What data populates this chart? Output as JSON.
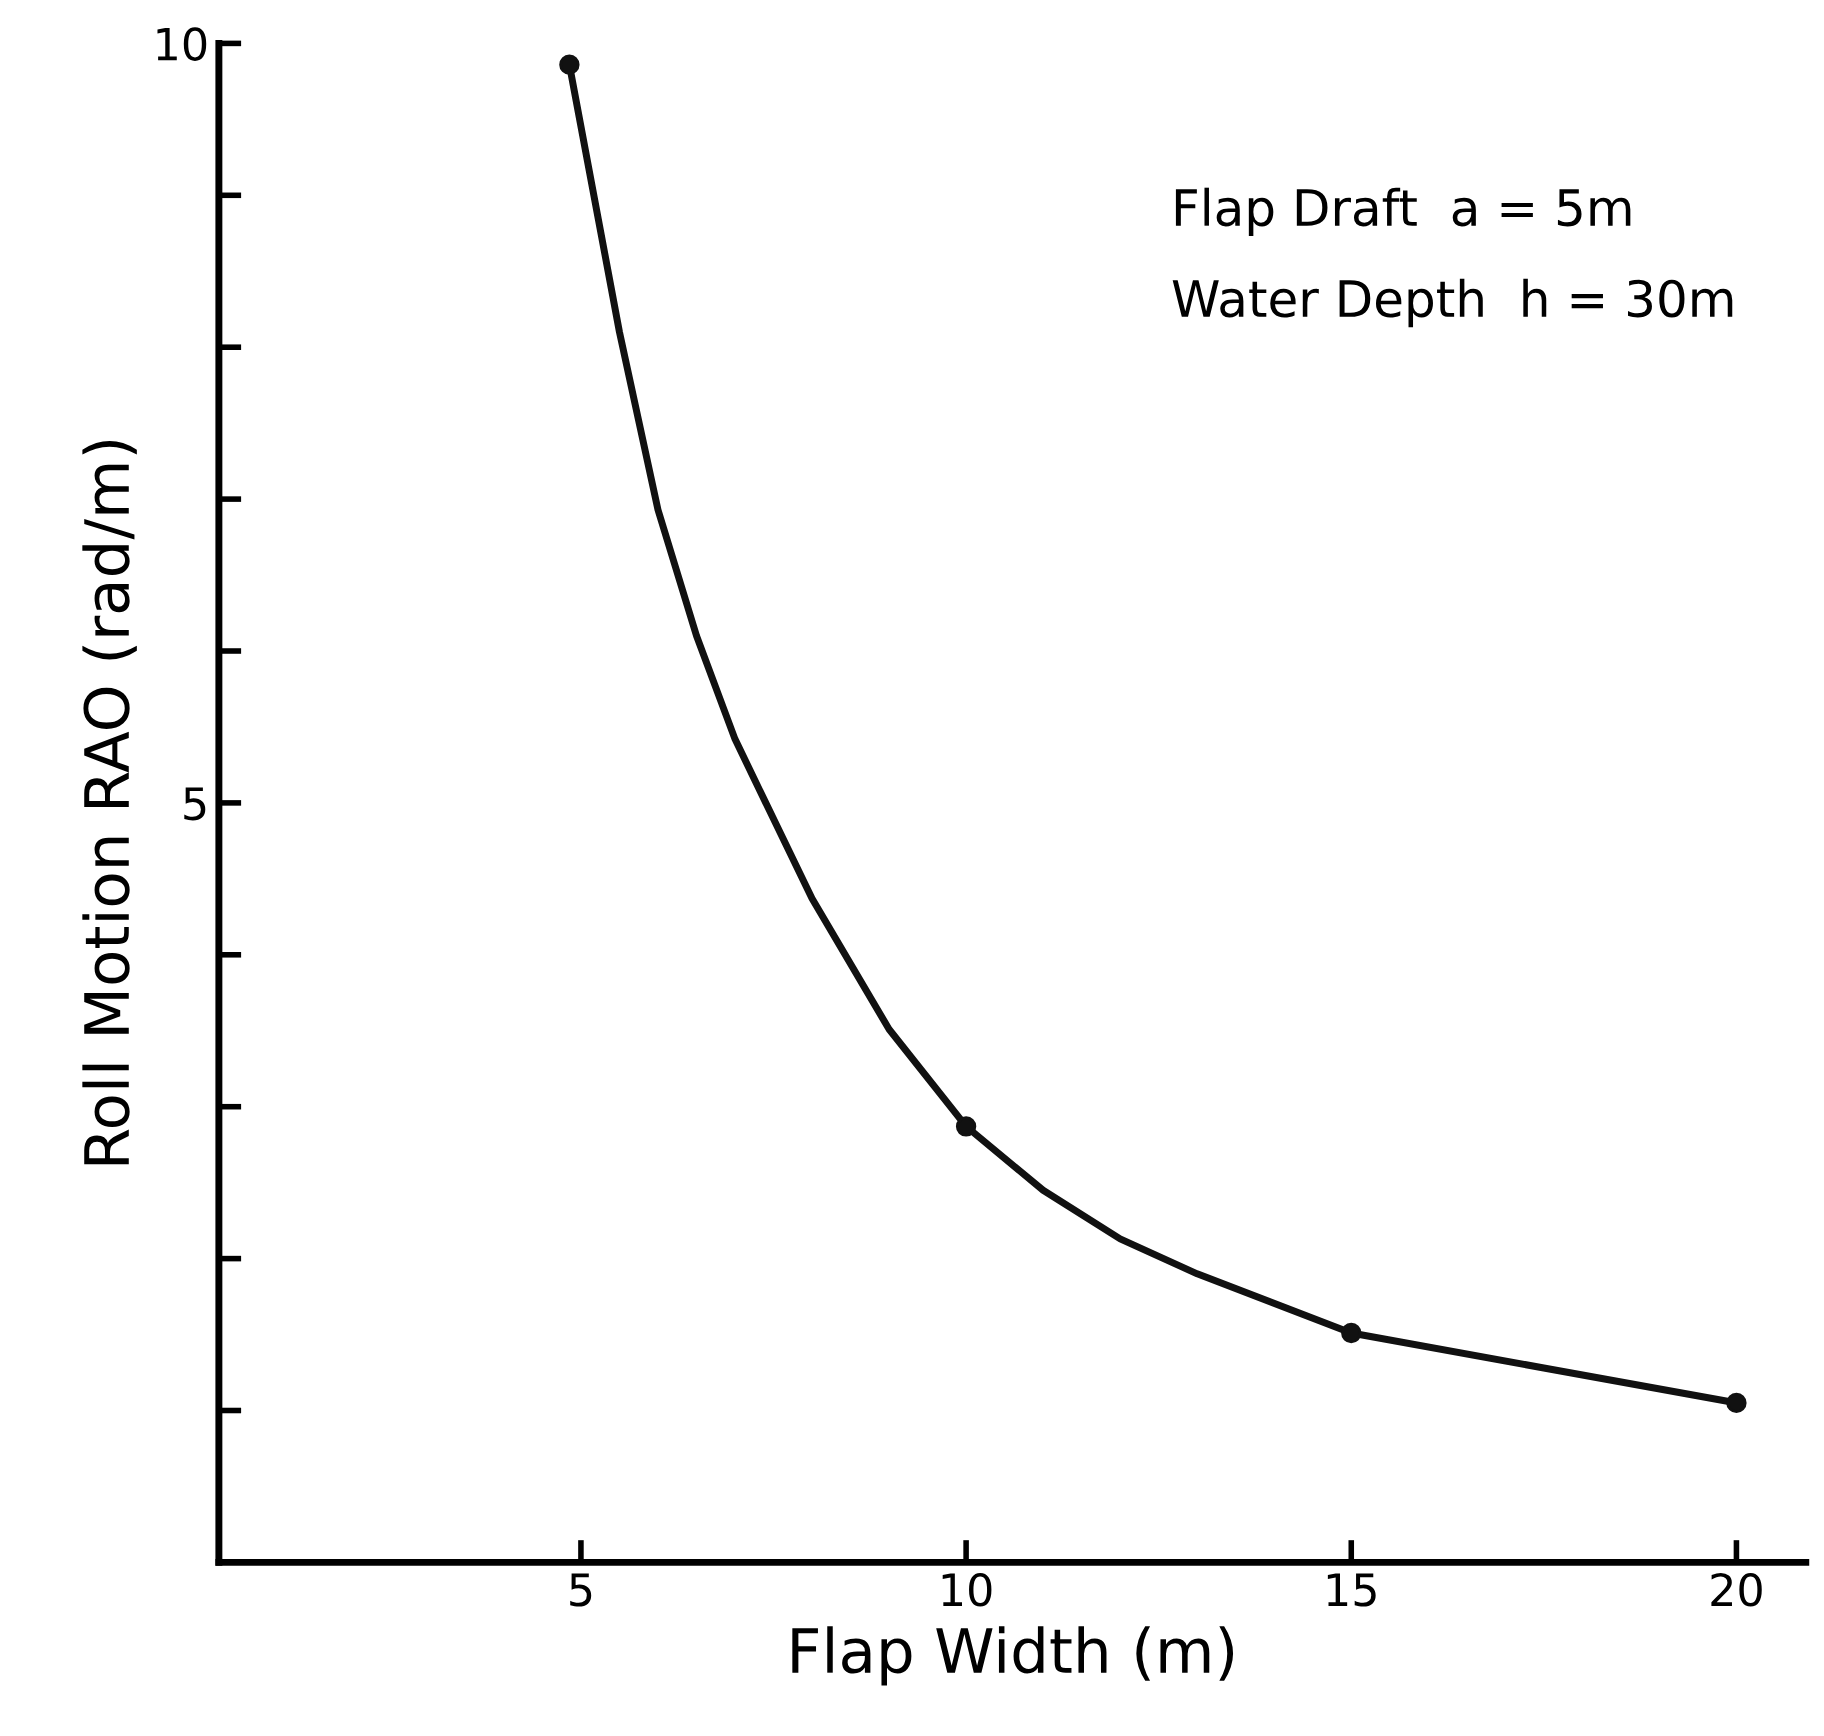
{
  "chart_data": {
    "type": "line",
    "xlabel": "Flap Width (m)",
    "ylabel": "Roll Motion RAO (rad/m)",
    "xlim": [
      0.3,
      20.9
    ],
    "ylim": [
      0,
      10
    ],
    "xticks": [
      5,
      10,
      15,
      20
    ],
    "yticks": [
      {
        "value": 1,
        "label": null
      },
      {
        "value": 2,
        "label": null
      },
      {
        "value": 3,
        "label": null
      },
      {
        "value": 4,
        "label": null
      },
      5,
      {
        "value": 6,
        "label": null
      },
      {
        "value": 7,
        "label": null
      },
      {
        "value": 8,
        "label": null
      },
      {
        "value": 9,
        "label": null
      },
      10
    ],
    "grid": false,
    "series": [
      {
        "color": "#111111",
        "marker": "none",
        "x": [
          4.85,
          5.5,
          6,
          6.5,
          7,
          8,
          9,
          10,
          11,
          12,
          13,
          15,
          17.5,
          20
        ],
        "values": [
          9.86,
          8.1,
          6.93,
          6.1,
          5.42,
          4.37,
          3.51,
          2.87,
          2.45,
          2.13,
          1.9,
          1.51,
          1.28,
          1.05
        ]
      },
      {
        "type": "scatter",
        "color": "#111111",
        "marker": "circle",
        "x": [
          4.85,
          10,
          15,
          20
        ],
        "values": [
          9.86,
          2.87,
          1.51,
          1.05
        ]
      }
    ],
    "annotations": [
      "Flap Draft  a = 5m",
      "Water Depth  h = 30m"
    ]
  }
}
